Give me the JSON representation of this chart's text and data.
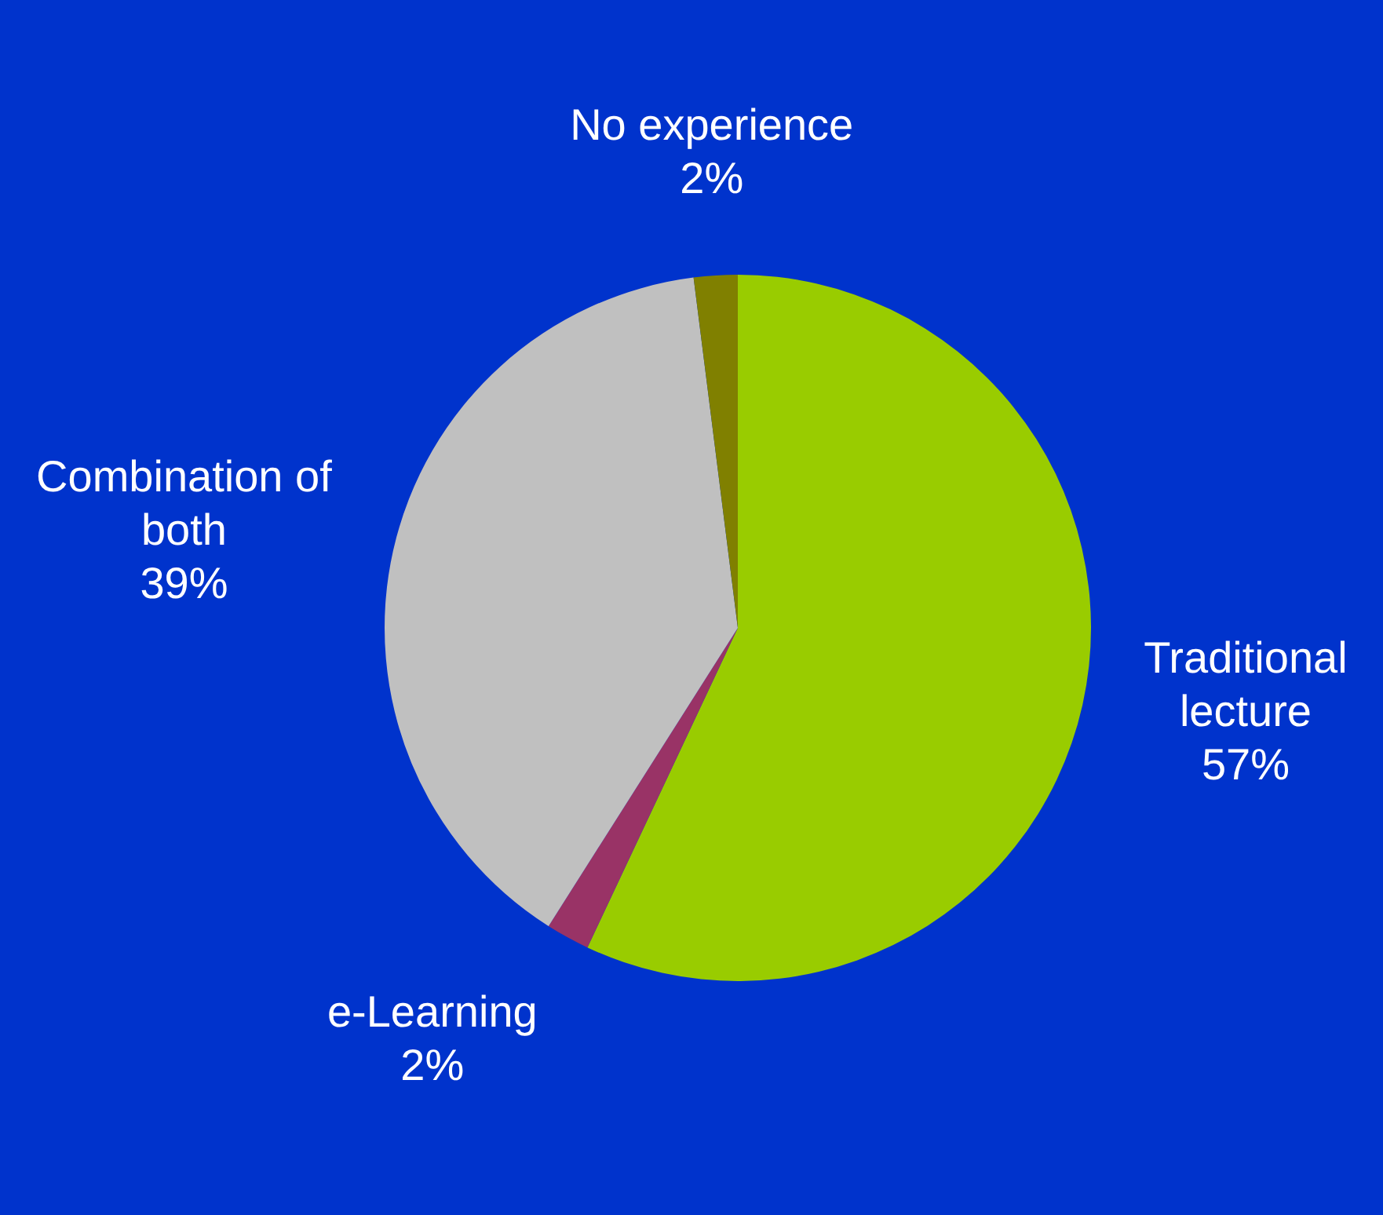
{
  "chart_data": {
    "type": "pie",
    "categories": [
      "Traditional lecture",
      "e-Learning",
      "Combination of both",
      "No experience"
    ],
    "values": [
      57,
      2,
      39,
      2
    ],
    "value_labels": [
      "57%",
      "2%",
      "39%",
      "2%"
    ],
    "colors": [
      "#99cc00",
      "#993366",
      "#c0c0c0",
      "#808000"
    ],
    "legend": false
  }
}
